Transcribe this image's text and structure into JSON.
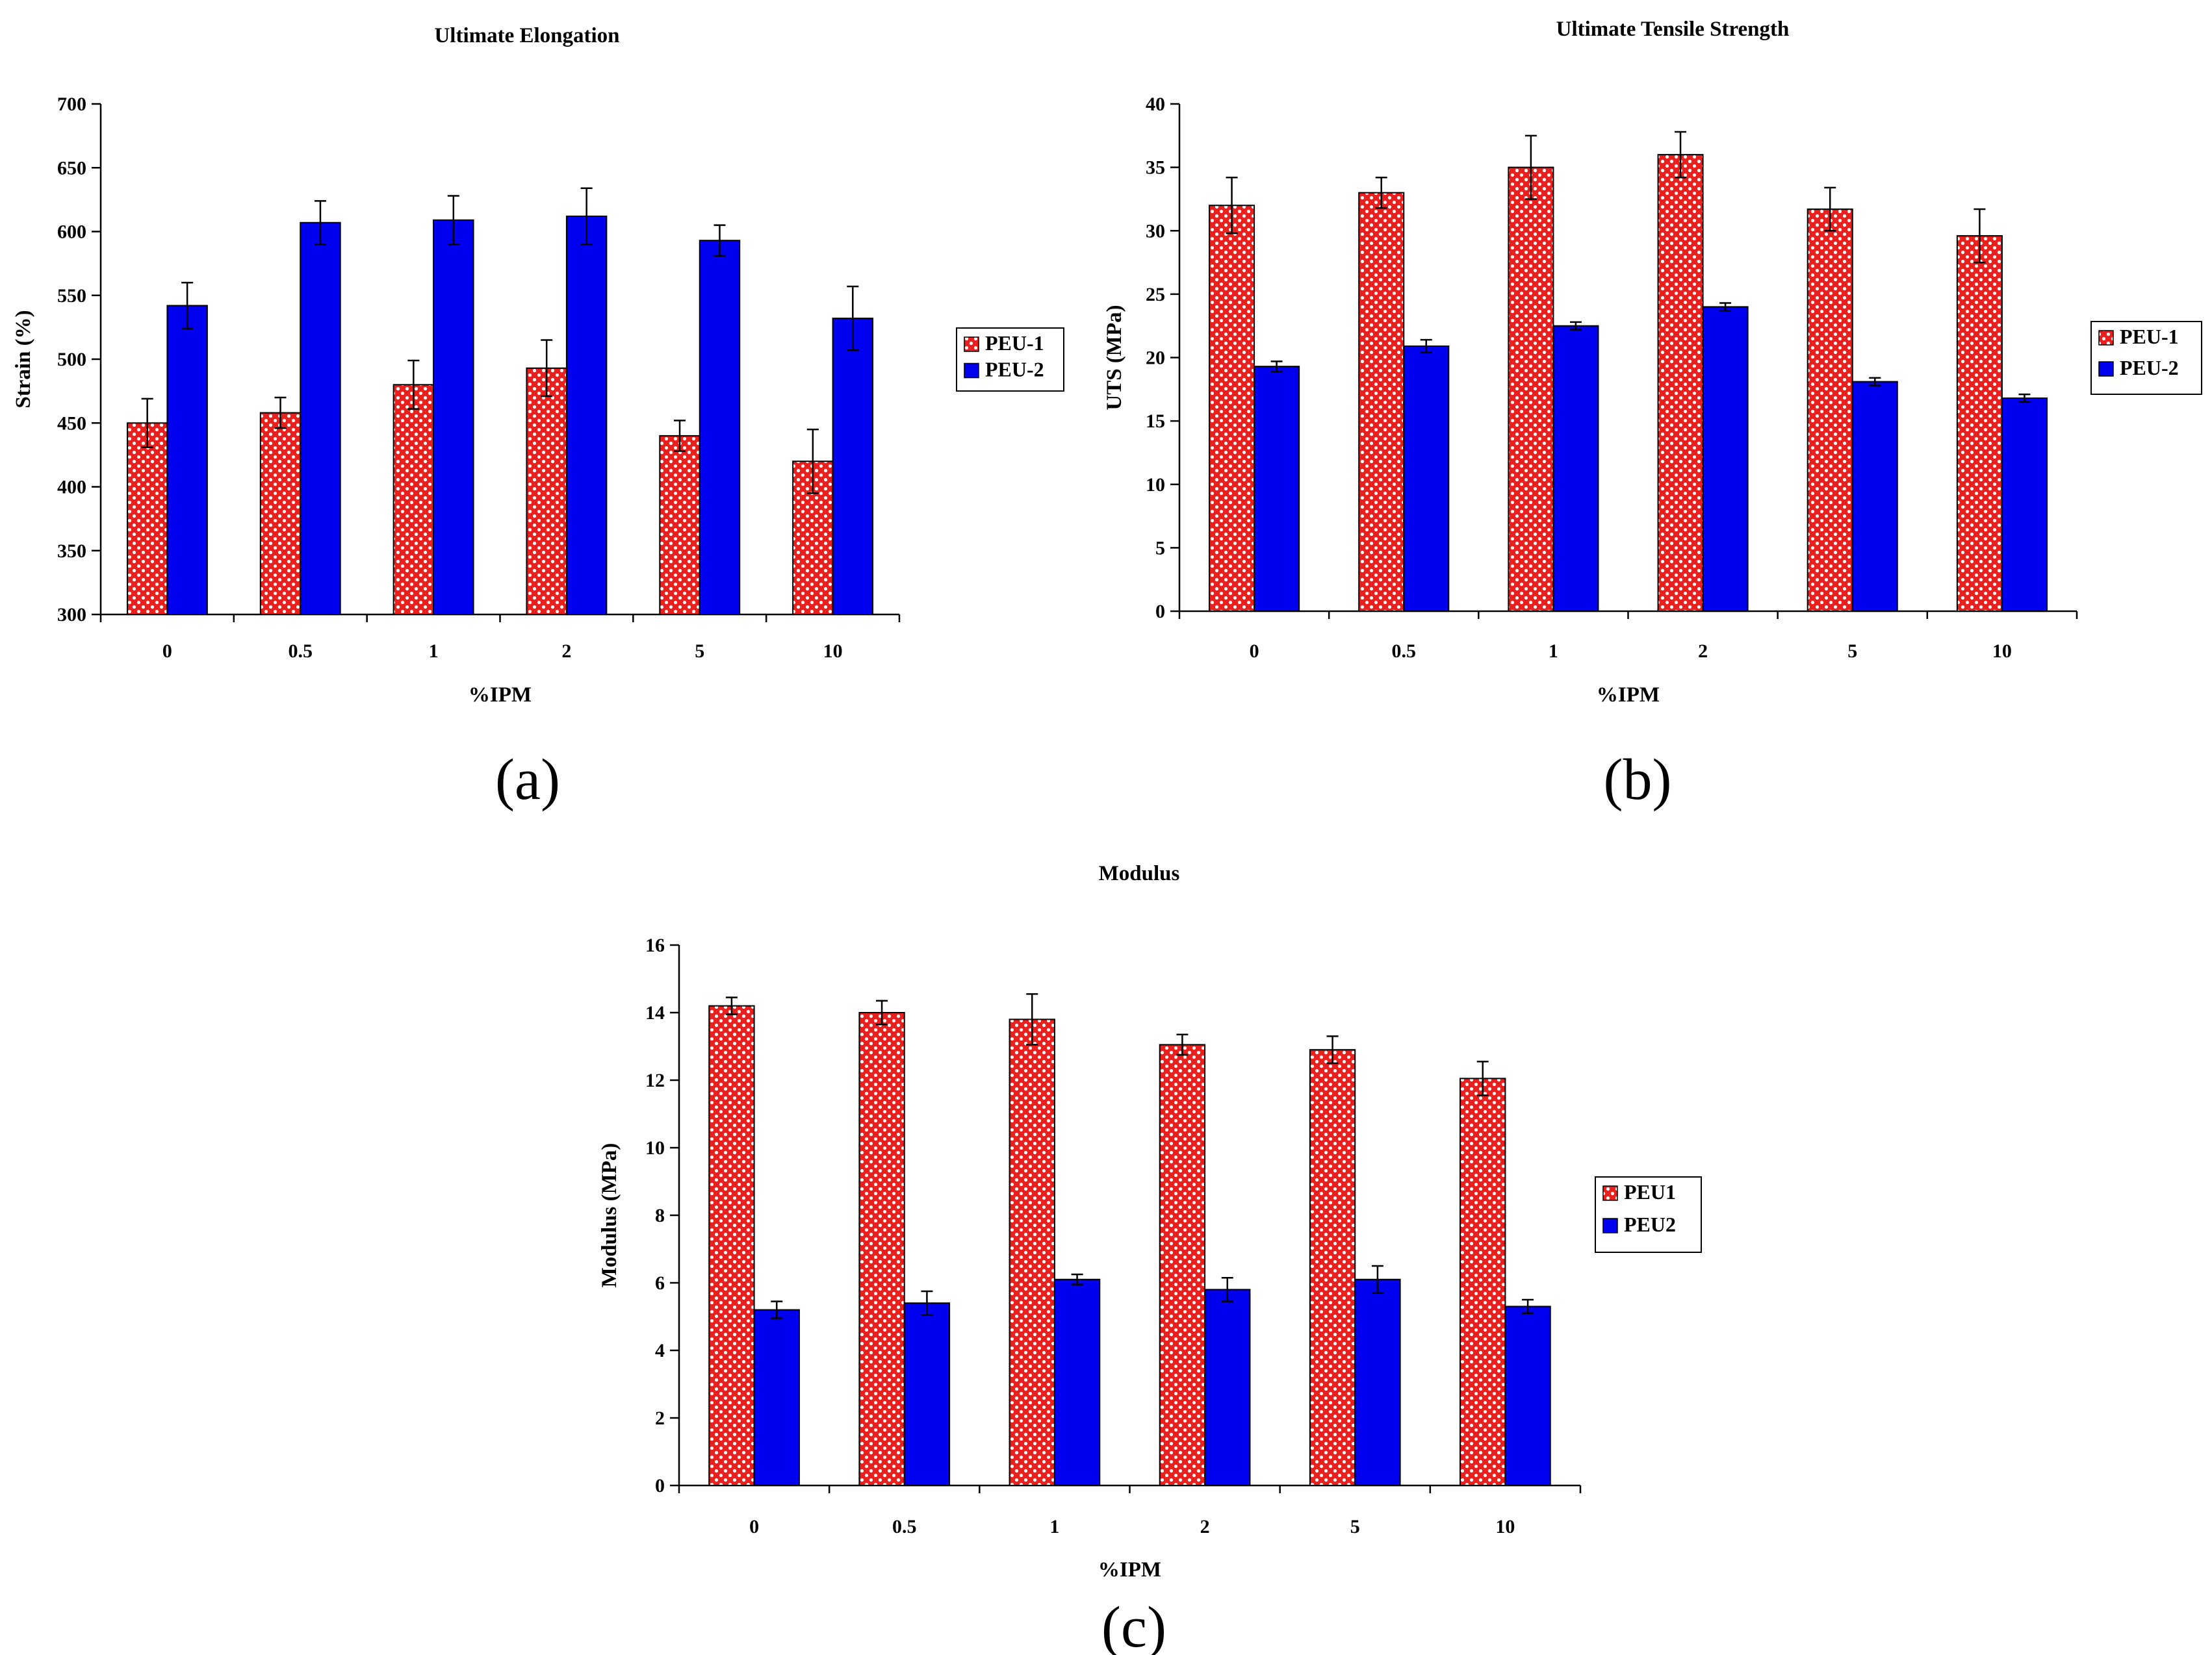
{
  "colors": {
    "series1": "#e8201e",
    "series2": "#0000ee",
    "dots": "#ffffff"
  },
  "chart_data": [
    {
      "type": "bar",
      "panel": "(a)",
      "title": "Ultimate Elongation",
      "xlabel": "%IPM",
      "ylabel": "Strain (%)",
      "ylim": [
        300,
        700
      ],
      "yticks": [
        300,
        350,
        400,
        450,
        500,
        550,
        600,
        650,
        700
      ],
      "categories": [
        "0",
        "0.5",
        "1",
        "2",
        "5",
        "10"
      ],
      "legend": "right",
      "series": [
        {
          "name": "PEU-1",
          "values": [
            450,
            458,
            480,
            493,
            440,
            420
          ],
          "errors": [
            19,
            12,
            19,
            22,
            12,
            25
          ]
        },
        {
          "name": "PEU-2",
          "values": [
            542,
            607,
            609,
            612,
            593,
            532
          ],
          "errors": [
            18,
            17,
            19,
            22,
            12,
            25
          ]
        }
      ]
    },
    {
      "type": "bar",
      "panel": "(b)",
      "title": "Ultimate Tensile Strength",
      "xlabel": "%IPM",
      "ylabel": "UTS (MPa)",
      "ylim": [
        0,
        40
      ],
      "yticks": [
        0,
        5,
        10,
        15,
        20,
        25,
        30,
        35,
        40
      ],
      "categories": [
        "0",
        "0.5",
        "1",
        "2",
        "5",
        "10"
      ],
      "legend": "right",
      "series": [
        {
          "name": "PEU-1",
          "values": [
            32,
            33,
            35,
            36,
            31.7,
            29.6
          ],
          "errors": [
            2.2,
            1.2,
            2.5,
            1.8,
            1.7,
            2.1
          ]
        },
        {
          "name": "PEU-2",
          "values": [
            19.3,
            20.9,
            22.5,
            24,
            18.1,
            16.8
          ],
          "errors": [
            0.4,
            0.5,
            0.3,
            0.3,
            0.3,
            0.3
          ]
        }
      ]
    },
    {
      "type": "bar",
      "panel": "(c)",
      "title": "Modulus",
      "xlabel": "%IPM",
      "ylabel": "Modulus (MPa)",
      "ylim": [
        0,
        16
      ],
      "yticks": [
        0,
        2,
        4,
        6,
        8,
        10,
        12,
        14,
        16
      ],
      "categories": [
        "0",
        "0.5",
        "1",
        "2",
        "5",
        "10"
      ],
      "legend": "right",
      "series": [
        {
          "name": "PEU1",
          "values": [
            14.2,
            14,
            13.8,
            13.05,
            12.9,
            12.05
          ],
          "errors": [
            0.25,
            0.35,
            0.75,
            0.3,
            0.4,
            0.5
          ]
        },
        {
          "name": "PEU2",
          "values": [
            5.2,
            5.4,
            6.1,
            5.8,
            6.1,
            5.3
          ],
          "errors": [
            0.25,
            0.35,
            0.15,
            0.35,
            0.4,
            0.2
          ]
        }
      ]
    }
  ]
}
